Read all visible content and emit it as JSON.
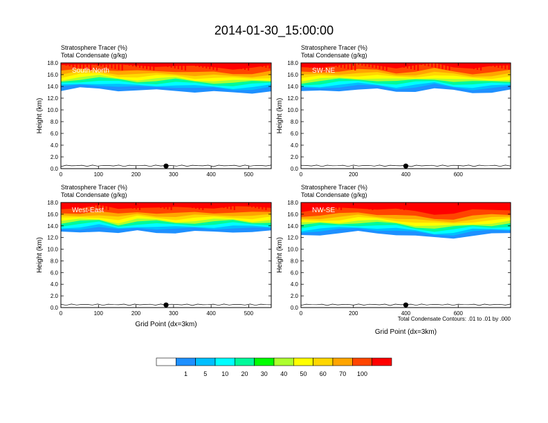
{
  "figure": {
    "title": "2014-01-30_15:00:00",
    "contour_note": "Total Condensate Contours: .01 to .01 by .000"
  },
  "colorbar": {
    "labels": [
      "1",
      "5",
      "10",
      "20",
      "30",
      "40",
      "50",
      "60",
      "70",
      "100"
    ],
    "colors": [
      "#ffffff",
      "#1e90ff",
      "#00bfff",
      "#00ffff",
      "#00fa9a",
      "#00ff00",
      "#adff2f",
      "#ffff00",
      "#ffd700",
      "#ffa500",
      "#ff4500",
      "#ff0000"
    ]
  },
  "chart_data": [
    {
      "type": "heatmap",
      "panel_label": "South-North",
      "header1": "Stratosphere Tracer   (%)",
      "header2": "Total Condensate   (g/kg)",
      "ylabel": "Height (km)",
      "xlabel": "",
      "xlim": [
        0,
        560
      ],
      "ylim": [
        0,
        18
      ],
      "xticks": [
        0,
        100,
        200,
        300,
        400,
        500
      ],
      "yticks": [
        "0.0",
        "2.0",
        "4.0",
        "6.0",
        "8.0",
        "10.0",
        "12.0",
        "14.0",
        "16.0",
        "18.0"
      ],
      "marker_x": 280,
      "tropopause_km": [
        14.8,
        15.2,
        15.3,
        15.0,
        14.8,
        14.9,
        15.0,
        14.7,
        14.6,
        14.5,
        14.6,
        14.8
      ]
    },
    {
      "type": "heatmap",
      "panel_label": "SW-NE",
      "header1": "Stratosphere Tracer   (%)",
      "header2": "Total Condensate   (g/kg)",
      "ylabel": "Height (km)",
      "xlabel": "",
      "xlim": [
        0,
        800
      ],
      "ylim": [
        0,
        18
      ],
      "xticks": [
        0,
        200,
        400,
        600
      ],
      "yticks": [
        "0.0",
        "2.0",
        "4.0",
        "6.0",
        "8.0",
        "10.0",
        "12.0",
        "14.0",
        "16.0",
        "18.0"
      ],
      "marker_x": 400,
      "tropopause_km": [
        14.6,
        14.8,
        15.0,
        15.1,
        15.0,
        14.7,
        14.9,
        15.2,
        14.8,
        14.6,
        14.7,
        14.9
      ]
    },
    {
      "type": "heatmap",
      "panel_label": "West-East",
      "header1": "Stratosphere Tracer   (%)",
      "header2": "Total Condensate   (g/kg)",
      "ylabel": "Height (km)",
      "xlabel": "Grid Point (dx=3km)",
      "xlim": [
        0,
        560
      ],
      "ylim": [
        0,
        18
      ],
      "xticks": [
        0,
        100,
        200,
        300,
        400,
        500
      ],
      "yticks": [
        "0.0",
        "2.0",
        "4.0",
        "6.0",
        "8.0",
        "10.0",
        "12.0",
        "14.0",
        "16.0",
        "18.0"
      ],
      "marker_x": 280,
      "tropopause_km": [
        14.4,
        14.6,
        14.8,
        14.2,
        14.7,
        14.6,
        14.4,
        14.5,
        14.6,
        14.7,
        14.5,
        14.6
      ]
    },
    {
      "type": "heatmap",
      "panel_label": "NW-SE",
      "header1": "Stratosphere Tracer   (%)",
      "header2": "Total Condensate   (g/kg)",
      "ylabel": "Height (km)",
      "xlabel": "Grid Point (dx=3km)",
      "xlim": [
        0,
        800
      ],
      "ylim": [
        0,
        18
      ],
      "xticks": [
        0,
        200,
        400,
        600
      ],
      "yticks": [
        "0.0",
        "2.0",
        "4.0",
        "6.0",
        "8.0",
        "10.0",
        "12.0",
        "14.0",
        "16.0",
        "18.0"
      ],
      "marker_x": 400,
      "tropopause_km": [
        14.0,
        14.2,
        14.3,
        14.5,
        14.4,
        14.2,
        13.8,
        13.5,
        13.6,
        14.0,
        14.1,
        14.3
      ]
    }
  ]
}
